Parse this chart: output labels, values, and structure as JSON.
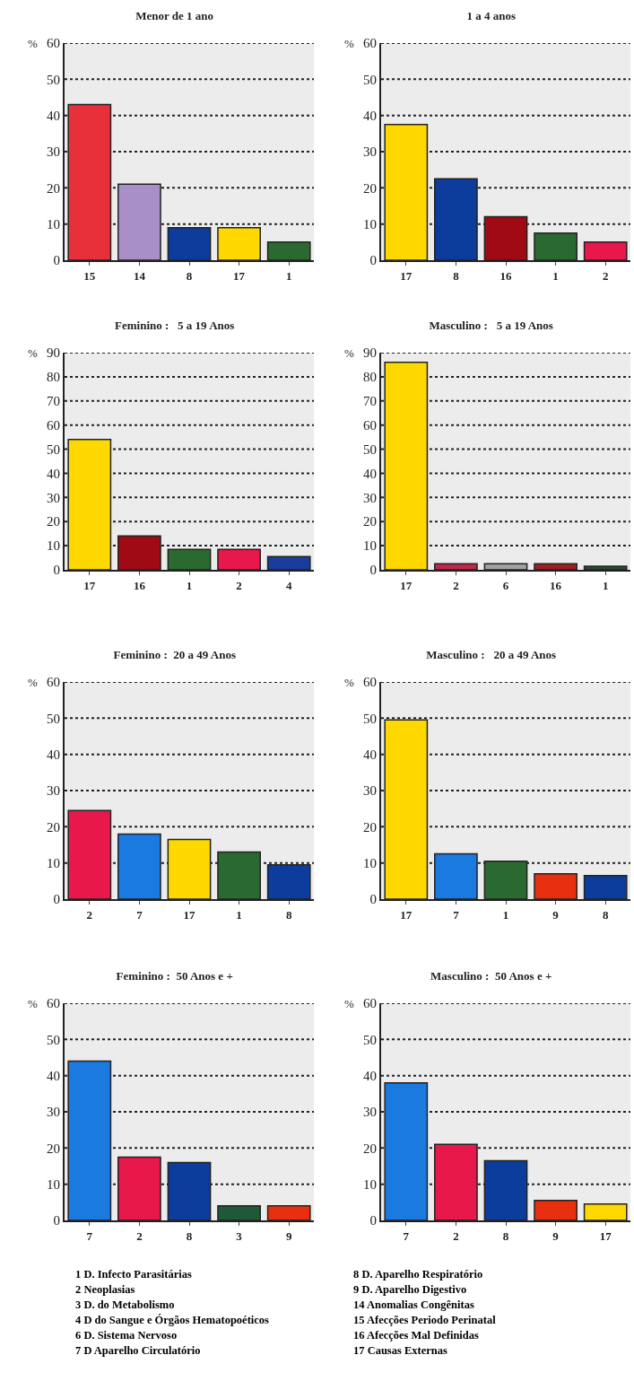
{
  "chart_data": [
    {
      "type": "bar",
      "title": "Menor de 1 ano",
      "ylabel": "%",
      "categories": [
        "15",
        "14",
        "8",
        "17",
        "1"
      ],
      "values": [
        43,
        21,
        9,
        9,
        5
      ],
      "colors": [
        "#e8303a",
        "#a98fc8",
        "#0c3c9c",
        "#ffd800",
        "#2a6a30"
      ],
      "ylim": [
        0,
        60
      ],
      "yticks": [
        0,
        10,
        20,
        30,
        40,
        50,
        60
      ],
      "grid": "y"
    },
    {
      "type": "bar",
      "title": "1 a 4 anos",
      "ylabel": "%",
      "categories": [
        "17",
        "8",
        "16",
        "1",
        "2"
      ],
      "values": [
        37.5,
        22.5,
        12,
        7.5,
        5
      ],
      "colors": [
        "#ffd800",
        "#0c3c9c",
        "#a00a14",
        "#2a6a30",
        "#e8184a"
      ],
      "ylim": [
        0,
        60
      ],
      "yticks": [
        0,
        10,
        20,
        30,
        40,
        50,
        60
      ],
      "grid": "y"
    },
    {
      "type": "bar",
      "title": "Feminino :   5 a 19 Anos",
      "ylabel": "%",
      "categories": [
        "17",
        "16",
        "1",
        "2",
        "4"
      ],
      "values": [
        54,
        14,
        8.5,
        8.5,
        5.5
      ],
      "colors": [
        "#ffd800",
        "#a00a14",
        "#2a6a30",
        "#e8184a",
        "#1a3c9c"
      ],
      "ylim": [
        0,
        90
      ],
      "yticks": [
        0,
        10,
        20,
        30,
        40,
        50,
        60,
        70,
        80,
        90
      ],
      "grid": "y"
    },
    {
      "type": "bar",
      "title": "Masculino :   5 a 19 Anos",
      "ylabel": "%",
      "categories": [
        "17",
        "2",
        "6",
        "16",
        "1"
      ],
      "values": [
        86,
        2.5,
        2.5,
        2.5,
        1.5
      ],
      "colors": [
        "#ffd800",
        "#c0284a",
        "#a0a0a0",
        "#a01c24",
        "#2a4a30"
      ],
      "ylim": [
        0,
        90
      ],
      "yticks": [
        0,
        10,
        20,
        30,
        40,
        50,
        60,
        70,
        80,
        90
      ],
      "grid": "y"
    },
    {
      "type": "bar",
      "title": "Feminino :  20 a 49 Anos",
      "ylabel": "%",
      "categories": [
        "2",
        "7",
        "17",
        "1",
        "8"
      ],
      "values": [
        24.5,
        18,
        16.5,
        13,
        9.5
      ],
      "colors": [
        "#e8184a",
        "#1a7ae0",
        "#ffd800",
        "#2a6a30",
        "#0c3c9c"
      ],
      "ylim": [
        0,
        60
      ],
      "yticks": [
        0,
        10,
        20,
        30,
        40,
        50,
        60
      ],
      "grid": "y"
    },
    {
      "type": "bar",
      "title": "Masculino :   20 a 49 Anos",
      "ylabel": "%",
      "categories": [
        "17",
        "7",
        "1",
        "9",
        "8"
      ],
      "values": [
        49.5,
        12.5,
        10.5,
        7,
        6.5
      ],
      "colors": [
        "#ffd800",
        "#1a7ae0",
        "#2a6a30",
        "#e83010",
        "#0c3c9c"
      ],
      "ylim": [
        0,
        60
      ],
      "yticks": [
        0,
        10,
        20,
        30,
        40,
        50,
        60
      ],
      "grid": "y"
    },
    {
      "type": "bar",
      "title": "Feminino :  50 Anos e +",
      "ylabel": "%",
      "categories": [
        "7",
        "2",
        "8",
        "3",
        "9"
      ],
      "values": [
        44,
        17.5,
        16,
        4,
        4
      ],
      "colors": [
        "#1a7ae0",
        "#e8184a",
        "#0c3c9c",
        "#1e5a3a",
        "#e83010"
      ],
      "ylim": [
        0,
        60
      ],
      "yticks": [
        0,
        10,
        20,
        30,
        40,
        50,
        60
      ],
      "grid": "y"
    },
    {
      "type": "bar",
      "title": "Masculino :  50 Anos e +",
      "ylabel": "%",
      "categories": [
        "7",
        "2",
        "8",
        "9",
        "17"
      ],
      "values": [
        38,
        21,
        16.5,
        5.5,
        4.5
      ],
      "colors": [
        "#1a7ae0",
        "#e8184a",
        "#0c3c9c",
        "#e83010",
        "#ffd800"
      ],
      "ylim": [
        0,
        60
      ],
      "yticks": [
        0,
        10,
        20,
        30,
        40,
        50,
        60
      ],
      "grid": "y"
    },
    {
      "type": "other",
      "annotations": [
        "1 D. Infecto Parasitárias",
        "2 Neoplasias",
        "3 D. do Metabolismo",
        "4 D do Sangue e Órgãos Hematopoéticos",
        "6 D. Sistema Nervoso",
        "7 D Aparelho Circulatório",
        "8 D. Aparelho Respiratório",
        "9 D. Aparelho Digestivo",
        "14 Anomalias Congênitas",
        "15 Afecções Periodo Perinatal",
        "16 Afecções Mal Definidas",
        "17 Causas Externas"
      ]
    }
  ]
}
